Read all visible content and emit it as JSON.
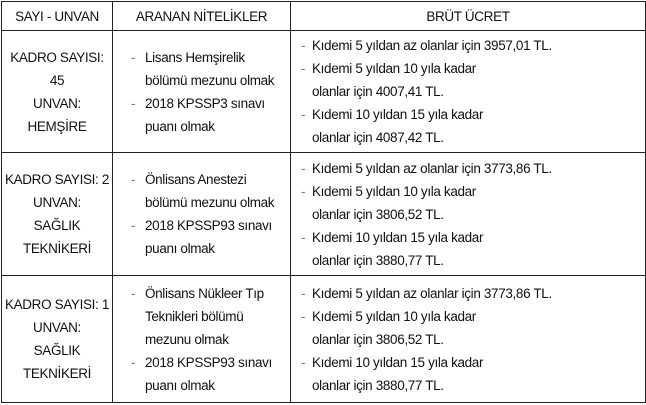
{
  "headers": [
    "SAYI - UNVAN",
    "ARANAN NİTELİKLER",
    "BRÜT ÜCRET"
  ],
  "rows": [
    {
      "kadro": "KADRO SAYISI: 45",
      "unvan": "UNVAN: HEMŞİRE",
      "nitelikler": [
        "Lisans Hemşirelik bölümü mezunu olmak",
        "2018 KPSSP3 sınavı puanı olmak"
      ],
      "ucret": [
        "Kıdemi 5 yıldan az olanlar için 3957,01 TL.",
        "Kıdemi 5 yıldan 10 yıla kadar olanlar için 4007,41 TL.",
        "Kıdemi 10 yıldan 15 yıla kadar olanlar için 4087,42 TL."
      ]
    },
    {
      "kadro": "KADRO SAYISI: 2",
      "unvan": "UNVAN: SAĞLIK TEKNİKERİ",
      "nitelikler": [
        "Önlisans Anestezi bölümü mezunu olmak",
        "2018 KPSSP93 sınavı puanı olmak"
      ],
      "ucret": [
        "Kıdemi 5 yıldan az olanlar için 3773,86 TL.",
        "Kıdemi 5 yıldan 10 yıla kadar olanlar için 3806,52 TL.",
        "Kıdemi 10 yıldan 15 yıla kadar olanlar için 3880,77 TL."
      ]
    },
    {
      "kadro": "KADRO SAYISI: 1",
      "unvan": "UNVAN: SAĞLIK TEKNİKERİ",
      "nitelikler": [
        "Önlisans Nükleer Tıp Teknikleri bölümü mezunu olmak",
        "2018 KPSSP93 sınavı puanı olmak"
      ],
      "ucret": [
        "Kıdemi 5 yıldan az olanlar için 3773,86 TL.",
        "Kıdemi 5 yıldan 10 yıla kadar olanlar için 3806,52 TL.",
        "Kıdemi 10 yıldan 15 yıla kadar olanlar için 3880,77 TL."
      ]
    }
  ]
}
